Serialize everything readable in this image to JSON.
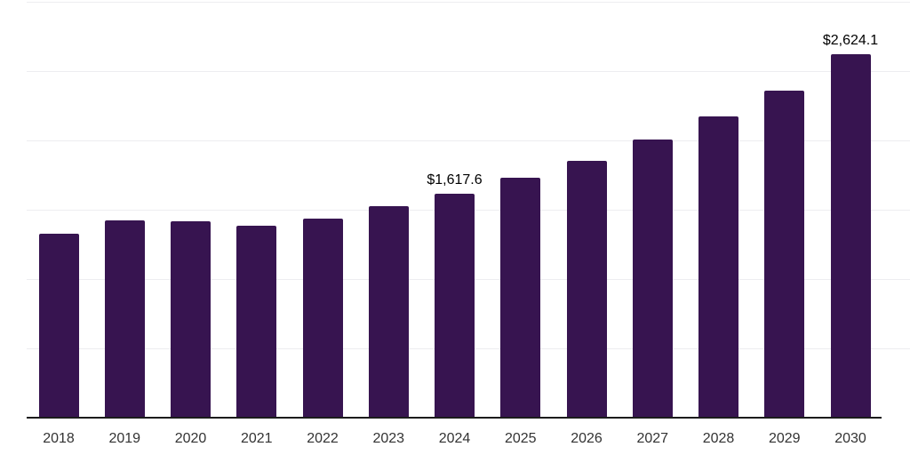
{
  "chart": {
    "colors": {
      "bar": "#371450",
      "gridline": "#ededf0",
      "axis": "#1c1c1c",
      "tick_text": "#333333",
      "label_text": "#000000",
      "background": "#ffffff"
    }
  },
  "chart_data": {
    "type": "bar",
    "categories": [
      "2018",
      "2019",
      "2020",
      "2021",
      "2022",
      "2023",
      "2024",
      "2025",
      "2026",
      "2027",
      "2028",
      "2029",
      "2030"
    ],
    "values": [
      1328,
      1426,
      1416,
      1386,
      1437,
      1526,
      1617.6,
      1732,
      1858,
      2007,
      2178,
      2363,
      2624.1
    ],
    "data_labels": [
      {
        "index": 6,
        "text": "$1,617.6"
      },
      {
        "index": 12,
        "text": "$2,624.1"
      }
    ],
    "title": "",
    "xlabel": "",
    "ylabel": "",
    "ylim": [
      0,
      3000
    ],
    "grid_step": 500,
    "grid": true,
    "legend": false
  }
}
